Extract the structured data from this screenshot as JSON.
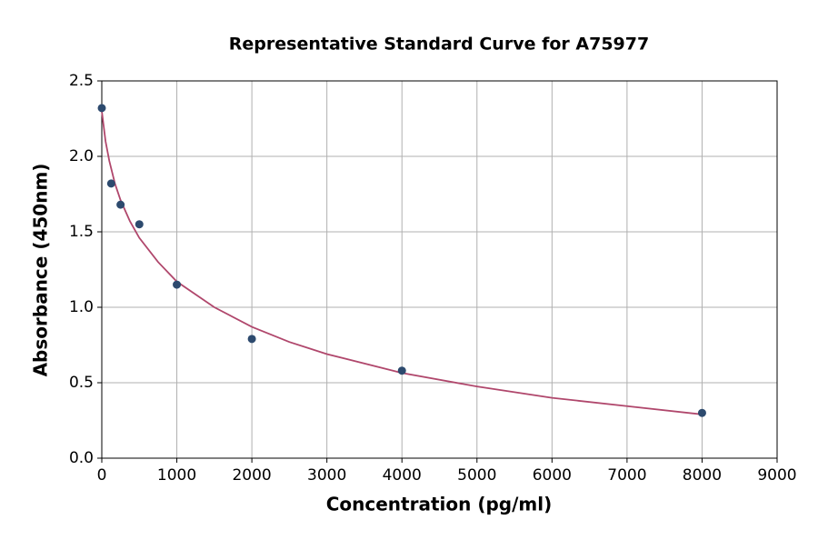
{
  "chart_data": {
    "type": "scatter",
    "title": "Representative Standard Curve for A75977",
    "xlabel": "Concentration (pg/ml)",
    "ylabel": "Absorbance (450nm)",
    "x": [
      0,
      125,
      250,
      500,
      1000,
      2000,
      4000,
      8000
    ],
    "values": [
      2.32,
      1.82,
      1.68,
      1.55,
      1.15,
      0.79,
      0.58,
      0.3
    ],
    "color": "#2d4a6e",
    "curve": {
      "color": "#b0476c",
      "x": [
        0,
        50,
        100,
        175,
        250,
        375,
        500,
        750,
        1000,
        1500,
        2000,
        2500,
        3000,
        4000,
        5000,
        6000,
        7000,
        8000
      ],
      "values": [
        2.3,
        2.1,
        1.97,
        1.82,
        1.71,
        1.57,
        1.46,
        1.3,
        1.17,
        1.0,
        0.87,
        0.77,
        0.69,
        0.565,
        0.475,
        0.4,
        0.345,
        0.29
      ]
    },
    "xlim": [
      0,
      9000
    ],
    "xticks": [
      0,
      1000,
      2000,
      3000,
      4000,
      5000,
      6000,
      7000,
      8000,
      9000
    ],
    "ylim": [
      0,
      2.5
    ],
    "yticks": [
      {
        "value": 0,
        "label": "0.0"
      },
      0.5,
      {
        "value": 1,
        "label": "1.0"
      },
      1.5,
      {
        "value": 2,
        "label": "2.0"
      },
      2.5
    ],
    "grid": true
  }
}
